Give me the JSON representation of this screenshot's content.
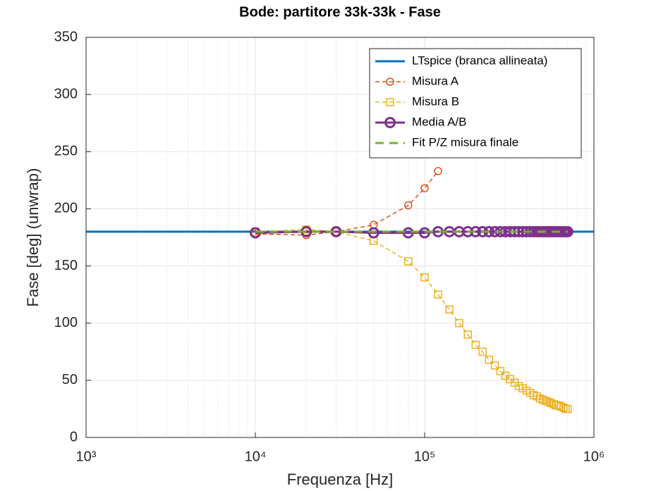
{
  "chart_data": {
    "type": "line",
    "title": "Bode: partitore 33k-33k - Fase",
    "x_label": "Frequenza [Hz]",
    "y_label": "Fase [deg] (unwrap)",
    "x_scale": "log",
    "xlim": [
      1000,
      1000000
    ],
    "xticks": [
      {
        "value": 1000,
        "label": "10³"
      },
      {
        "value": 10000,
        "label": "10⁴"
      },
      {
        "value": 100000,
        "label": "10⁵"
      },
      {
        "value": 1000000,
        "label": "10⁶"
      }
    ],
    "ylim": [
      0,
      350
    ],
    "yticks": [
      0,
      50,
      100,
      150,
      200,
      250,
      300,
      350
    ],
    "grid": true,
    "minor_grid": true,
    "legend": "top-right",
    "series": [
      {
        "name": "LTspice (branca allineata)",
        "color": "#0072BD",
        "line_style": "solid",
        "marker": "none",
        "line_width": 3,
        "x": [
          1000,
          1000000
        ],
        "values": [
          180,
          180
        ]
      },
      {
        "name": "Misura A",
        "color": "#D95319",
        "line_style": "dashed",
        "marker": "circle",
        "line_width": 1.5,
        "x": [
          10000,
          20000,
          30000,
          50000,
          80000,
          100000,
          120000
        ],
        "values": [
          178,
          177,
          180,
          186,
          203,
          218,
          233
        ]
      },
      {
        "name": "Misura B",
        "color": "#EDB120",
        "line_style": "dashed",
        "marker": "square",
        "line_width": 1.5,
        "x": [
          10000,
          20000,
          30000,
          50000,
          80000,
          100000,
          120000,
          140000,
          160000,
          180000,
          200000,
          220000,
          240000,
          260000,
          280000,
          300000,
          320000,
          340000,
          360000,
          380000,
          400000,
          420000,
          440000,
          460000,
          480000,
          500000,
          520000,
          540000,
          560000,
          580000,
          600000,
          620000,
          640000,
          660000,
          680000,
          700000
        ],
        "values": [
          180,
          182,
          180,
          172,
          154,
          140,
          125,
          112,
          100,
          90,
          81,
          75,
          68,
          63,
          58,
          54,
          51,
          48,
          45,
          43,
          41,
          39,
          37,
          36,
          34,
          33,
          32,
          31,
          30,
          29,
          28,
          28,
          27,
          26,
          25,
          25
        ]
      },
      {
        "name": "Media A/B",
        "color": "#7E2F8E",
        "line_style": "solid",
        "marker": "circle-large",
        "line_width": 3,
        "x": [
          10000,
          20000,
          30000,
          50000,
          80000,
          100000,
          120000,
          140000,
          160000,
          180000,
          200000,
          220000,
          240000,
          260000,
          280000,
          300000,
          320000,
          340000,
          360000,
          380000,
          400000,
          420000,
          440000,
          460000,
          480000,
          500000,
          520000,
          540000,
          560000,
          580000,
          600000,
          620000,
          640000,
          660000,
          680000,
          700000
        ],
        "values": [
          179,
          180,
          180,
          179,
          179,
          179,
          180,
          180,
          180,
          180,
          180,
          180,
          180,
          180,
          180,
          180,
          180,
          180,
          180,
          180,
          180,
          180,
          180,
          180,
          180,
          180,
          180,
          180,
          180,
          180,
          180,
          180,
          180,
          180,
          180,
          180
        ]
      },
      {
        "name": "Fit P/Z misura finale",
        "color": "#77AC30",
        "line_style": "dashed",
        "marker": "none",
        "line_width": 3,
        "x": [
          10000,
          700000
        ],
        "values": [
          180,
          180
        ]
      }
    ]
  }
}
